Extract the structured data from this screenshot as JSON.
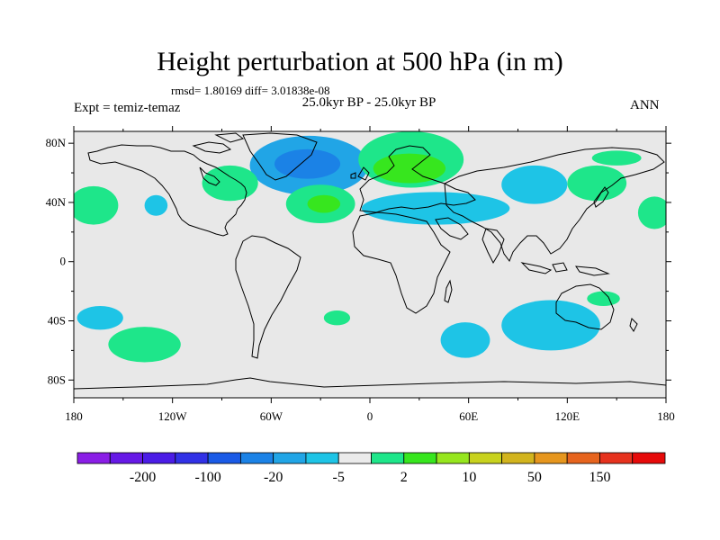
{
  "chart_data": {
    "type": "contour-map",
    "title": "Height perturbation at 500 hPa (in m)",
    "stats_text": "rmsd= 1.80169 diff= 3.01838e-08",
    "left_label": "Expt = temiz-temaz",
    "center_label": "25.0kyr BP - 25.0kyr BP",
    "right_label": "ANN",
    "x_ticks": [
      {
        "value": 180,
        "label": "180"
      },
      {
        "value": -120,
        "label": "120W"
      },
      {
        "value": -60,
        "label": "60W"
      },
      {
        "value": 0,
        "label": "0"
      },
      {
        "value": 60,
        "label": "60E"
      },
      {
        "value": 120,
        "label": "120E"
      },
      {
        "value": 180,
        "label": "180"
      }
    ],
    "y_ticks": [
      {
        "value": 80,
        "label": "80N"
      },
      {
        "value": 40,
        "label": "40N"
      },
      {
        "value": 0,
        "label": "0"
      },
      {
        "value": -40,
        "label": "40S"
      },
      {
        "value": -80,
        "label": "80S"
      }
    ],
    "colorbar": {
      "colors": [
        "#8a1ee6",
        "#6619e6",
        "#4b1ce6",
        "#3131e6",
        "#1a5ae6",
        "#1b82e6",
        "#21a5e6",
        "#1ec4e6",
        "#ebebeb",
        "#1ee68a",
        "#37e61e",
        "#96e61e",
        "#c8d21e",
        "#d2b41e",
        "#e6961e",
        "#e6641e",
        "#e6321e",
        "#e60a0a"
      ],
      "labels": [
        {
          "after_index": 1,
          "text": "-200"
        },
        {
          "after_index": 3,
          "text": "-100"
        },
        {
          "after_index": 5,
          "text": "-20"
        },
        {
          "after_index": 7,
          "text": "-5"
        },
        {
          "after_index": 9,
          "text": "2"
        },
        {
          "after_index": 11,
          "text": "10"
        },
        {
          "after_index": 13,
          "text": "50"
        },
        {
          "after_index": 15,
          "text": "150"
        }
      ]
    },
    "shaded_regions": [
      {
        "lon": -37,
        "lat": 65,
        "rlon": 36,
        "rlat": 20,
        "color": "#21a5e6"
      },
      {
        "lon": -38,
        "lat": 66,
        "rlon": 20,
        "rlat": 10,
        "color": "#1b82e6"
      },
      {
        "lon": -85,
        "lat": 53,
        "rlon": 17,
        "rlat": 12,
        "color": "#1ee68a"
      },
      {
        "lon": -30,
        "lat": 39,
        "rlon": 21,
        "rlat": 13,
        "color": "#1ee68a"
      },
      {
        "lon": -28,
        "lat": 39,
        "rlon": 10,
        "rlat": 6,
        "color": "#37e61e"
      },
      {
        "lon": 25,
        "lat": 69,
        "rlon": 32,
        "rlat": 19,
        "color": "#1ee68a"
      },
      {
        "lon": 24,
        "lat": 63,
        "rlon": 22,
        "rlat": 10,
        "color": "#37e61e"
      },
      {
        "lon": 40,
        "lat": 36,
        "rlon": 45,
        "rlat": 11,
        "color": "#1ec4e6"
      },
      {
        "lon": 100,
        "lat": 52,
        "rlon": 20,
        "rlat": 13,
        "color": "#1ec4e6"
      },
      {
        "lon": 138,
        "lat": 53,
        "rlon": 18,
        "rlat": 12,
        "color": "#1ee68a"
      },
      {
        "lon": 150,
        "lat": 70,
        "rlon": 15,
        "rlat": 5,
        "color": "#1ee68a"
      },
      {
        "lon": 173,
        "lat": 33,
        "rlon": 10,
        "rlat": 11,
        "color": "#1ee68a"
      },
      {
        "lon": -168,
        "lat": 38,
        "rlon": 15,
        "rlat": 13,
        "color": "#1ee68a"
      },
      {
        "lon": -130,
        "lat": 38,
        "rlon": 7,
        "rlat": 7,
        "color": "#1ec4e6"
      },
      {
        "lon": -164,
        "lat": -38,
        "rlon": 14,
        "rlat": 8,
        "color": "#1ec4e6"
      },
      {
        "lon": -137,
        "lat": -56,
        "rlon": 22,
        "rlat": 12,
        "color": "#1ee68a"
      },
      {
        "lon": -20,
        "lat": -38,
        "rlon": 8,
        "rlat": 5,
        "color": "#1ee68a"
      },
      {
        "lon": 58,
        "lat": -53,
        "rlon": 15,
        "rlat": 12,
        "color": "#1ec4e6"
      },
      {
        "lon": 110,
        "lat": -43,
        "rlon": 30,
        "rlat": 17,
        "color": "#1ec4e6"
      },
      {
        "lon": 142,
        "lat": -25,
        "rlon": 10,
        "rlat": 5,
        "color": "#1ee68a"
      }
    ]
  }
}
